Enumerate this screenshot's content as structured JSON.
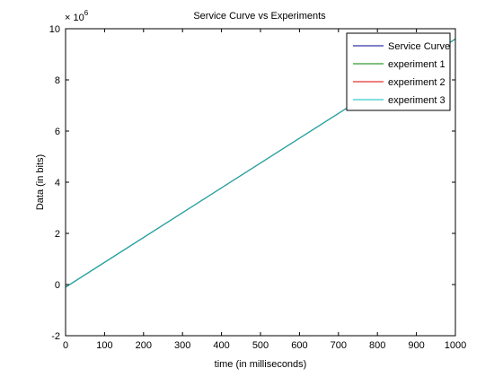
{
  "chart_data": {
    "type": "line",
    "title": "Service Curve vs Experiments",
    "xlabel": "time (in milliseconds)",
    "ylabel": "Data (in bits)",
    "y_multiplier_label": "× 10",
    "y_multiplier_exponent": "6",
    "xlim": [
      0,
      1000
    ],
    "ylim": [
      -2,
      10
    ],
    "x_ticks": [
      0,
      100,
      200,
      300,
      400,
      500,
      600,
      700,
      800,
      900,
      1000
    ],
    "y_ticks": [
      -2,
      0,
      2,
      4,
      6,
      8,
      10
    ],
    "grid": false,
    "legend_position": "top-right",
    "series": [
      {
        "name": "Service Curve",
        "color": "#00008f",
        "x": [
          0,
          1000
        ],
        "y": [
          -0.1,
          9.6
        ]
      },
      {
        "name": "experiment 1",
        "color": "#007f00",
        "x": [
          0,
          1000
        ],
        "y": [
          -0.1,
          9.6
        ]
      },
      {
        "name": "experiment 2",
        "color": "#df0000",
        "x": [
          0,
          1000
        ],
        "y": [
          -0.1,
          9.6
        ]
      },
      {
        "name": "experiment 3",
        "color": "#00bfbf",
        "x": [
          0,
          1000
        ],
        "y": [
          -0.1,
          9.6
        ]
      }
    ]
  }
}
